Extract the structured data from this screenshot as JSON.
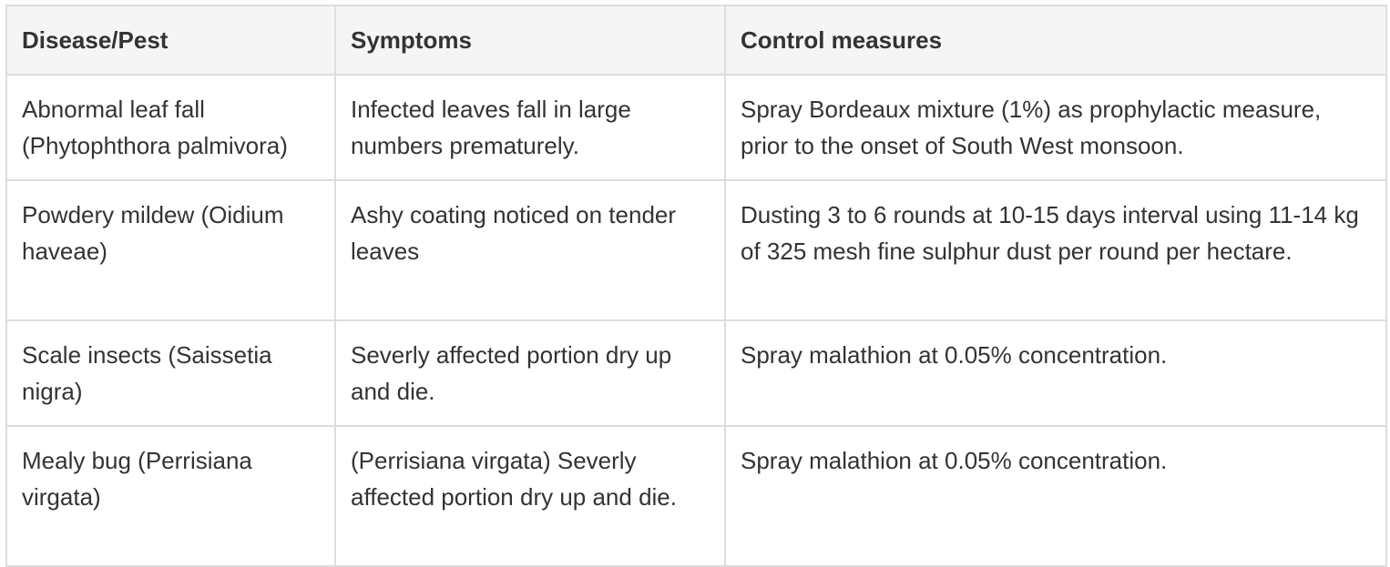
{
  "table": {
    "headers": [
      "Disease/Pest",
      "Symptoms",
      "Control measures"
    ],
    "rows": [
      [
        "Abnormal leaf fall (Phytophthora palmivora)",
        "Infected leaves fall in large numbers prematurely.",
        "Spray Bordeaux mixture (1%) as prophylactic measure, prior to the onset of South West monsoon."
      ],
      [
        "Powdery mildew (Oidium haveae)",
        "Ashy coating noticed on tender leaves",
        "Dusting 3 to 6 rounds at 10-15 days interval using 11-14 kg of 325 mesh fine sulphur dust per round per hectare."
      ],
      [
        "Scale insects (Saissetia nigra)",
        "Severly affected portion dry up and die.",
        "Spray malathion at 0.05% concentration."
      ],
      [
        "Mealy bug (Perrisiana virgata)",
        "(Perrisiana virgata) Severly affected portion dry up and die.",
        "Spray malathion at 0.05% concentration."
      ]
    ]
  }
}
